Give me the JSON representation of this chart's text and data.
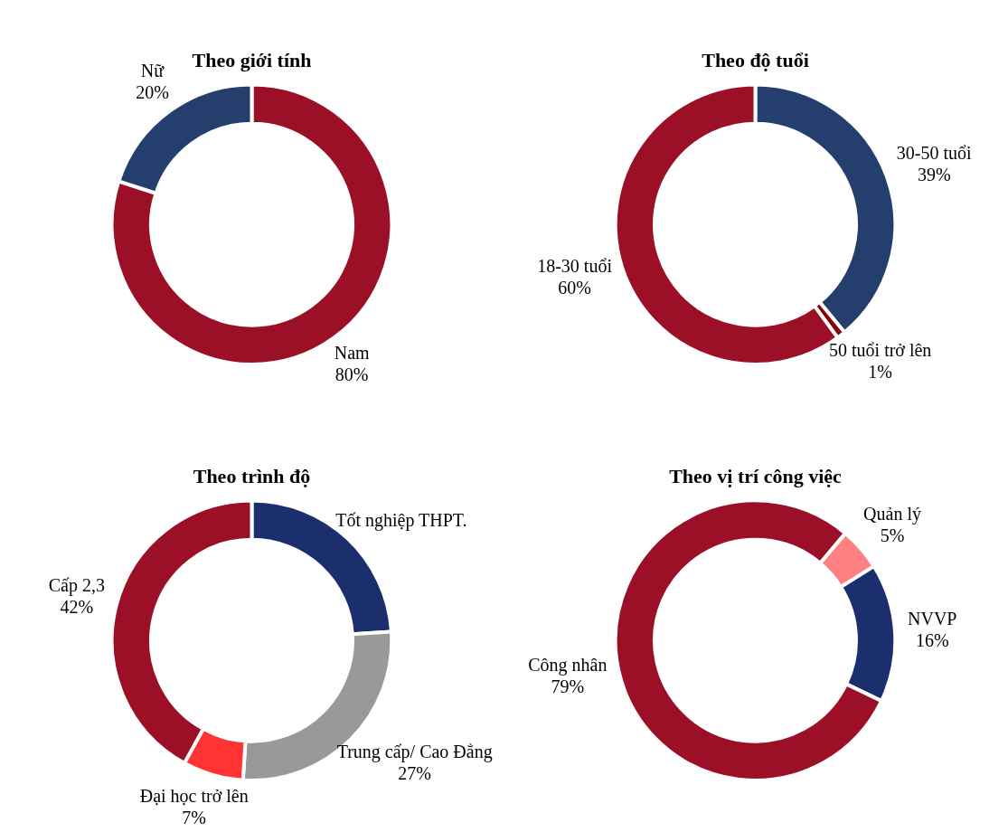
{
  "chart_data": [
    {
      "type": "donut",
      "title": "Theo giới tính",
      "categories": [
        "Nam",
        "Nữ"
      ],
      "values": [
        80,
        20
      ],
      "colors": [
        "#9b1027",
        "#243f6e"
      ],
      "value_labels": [
        "80%",
        "20%"
      ]
    },
    {
      "type": "donut",
      "title": "Theo độ tuổi",
      "categories": [
        "30-50 tuổi",
        "50 tuổi trở lên",
        "18-30 tuổi"
      ],
      "values": [
        39,
        1,
        60
      ],
      "colors": [
        "#243f6e",
        "#8b0000",
        "#9b1027"
      ],
      "value_labels": [
        "39%",
        "1%",
        "60%"
      ]
    },
    {
      "type": "donut",
      "title": "Theo trình độ",
      "categories": [
        "Tốt nghiệp THPT.",
        "Trung cấp/ Cao Đẳng",
        "Đại học trở lên",
        "Cấp 2,3"
      ],
      "values": [
        24,
        27,
        7,
        42
      ],
      "colors": [
        "#1b2f6e",
        "#999999",
        "#ff3333",
        "#9b1027"
      ],
      "value_labels": [
        null,
        "27%",
        "7%",
        "42%"
      ]
    },
    {
      "type": "donut",
      "title": "Theo vị trí công việc",
      "categories": [
        "Quản lý",
        "NVVP",
        "Công nhân"
      ],
      "values": [
        5,
        16,
        79
      ],
      "colors": [
        "#ff8080",
        "#1b2f6e",
        "#9b1027"
      ],
      "value_labels": [
        "5%",
        "16%",
        "79%"
      ]
    }
  ]
}
